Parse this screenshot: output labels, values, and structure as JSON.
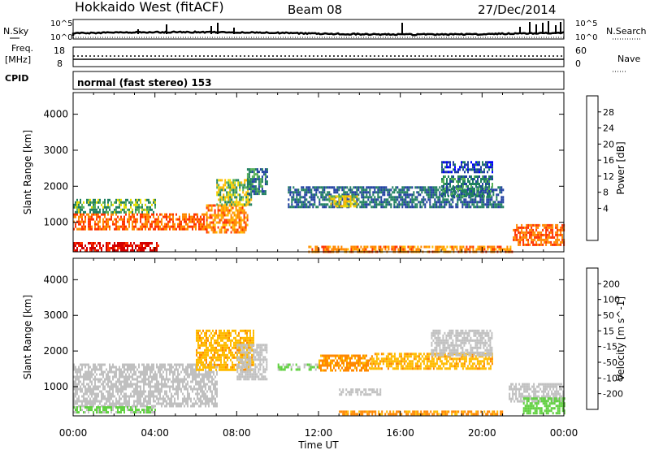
{
  "header": {
    "station": "Hokkaido West (fitACF)",
    "beam": "Beam 08",
    "date": "27/Dec/2014"
  },
  "noise_panel": {
    "left_label": "N.Sky",
    "right_label": "N.Search",
    "left_ticks": [
      "10^5",
      "10^0"
    ],
    "right_ticks": [
      "10^5",
      "10^0"
    ]
  },
  "freq_panel": {
    "left_label_line1": "Freq.",
    "left_label_line2": "[MHz]",
    "right_label": "Nave",
    "left_ticks": [
      "18",
      "8"
    ],
    "right_ticks": [
      "60",
      "0"
    ]
  },
  "cpid": {
    "label": "CPID",
    "value": "normal (fast stereo) 153"
  },
  "x_axis": {
    "label": "Time UT",
    "ticks": [
      "00:00",
      "04:00",
      "08:00",
      "12:00",
      "16:00",
      "20:00",
      "00:00"
    ]
  },
  "power_colorbar": {
    "title": "Power [dB]",
    "labels": [
      "28",
      "24",
      "20",
      "16",
      "12",
      "8",
      "4"
    ],
    "colors": [
      "#d40000",
      "#ff3300",
      "#ff8800",
      "#ffbb00",
      "#e8dd00",
      "#58b058",
      "#208060",
      "#2040a0",
      "#0000ff"
    ]
  },
  "velocity_colorbar": {
    "title": "Velocity [m s^-1]",
    "labels": [
      "200",
      "100",
      "50",
      "15",
      "-15",
      "-50",
      "-100",
      "-200"
    ],
    "colors": [
      "#2030b0",
      "#208060",
      "#58b058",
      "#60d040",
      "#c0c0c0",
      "#ffbb00",
      "#ff8800",
      "#ff3300",
      "#d40000"
    ]
  },
  "chart_data": [
    {
      "type": "heatmap",
      "name": "power",
      "ylabel": "Slant Range [km]",
      "xlabel": "",
      "ylim": [
        180,
        4600
      ],
      "yticks": [
        1000,
        2000,
        3000,
        4000
      ],
      "xlim_hours": [
        0,
        24
      ],
      "regions": [
        {
          "t": [
            0.0,
            6.5
          ],
          "r": [
            800,
            1250
          ],
          "value": 24
        },
        {
          "t": [
            0.0,
            4.2
          ],
          "r": [
            200,
            450
          ],
          "value": 30
        },
        {
          "t": [
            0.0,
            4.0
          ],
          "r": [
            1250,
            1650
          ],
          "value": 12
        },
        {
          "t": [
            6.5,
            8.5
          ],
          "r": [
            700,
            1500
          ],
          "value": 22
        },
        {
          "t": [
            7.0,
            8.7
          ],
          "r": [
            1500,
            2200
          ],
          "value": 14
        },
        {
          "t": [
            8.5,
            9.5
          ],
          "r": [
            1800,
            2500
          ],
          "value": 10
        },
        {
          "t": [
            10.5,
            21.0
          ],
          "r": [
            1450,
            2000
          ],
          "value": 8
        },
        {
          "t": [
            12.5,
            14.0
          ],
          "r": [
            1450,
            1750
          ],
          "value": 16
        },
        {
          "t": [
            18.0,
            20.5
          ],
          "r": [
            1700,
            2300
          ],
          "value": 10
        },
        {
          "t": [
            18.0,
            20.5
          ],
          "r": [
            2400,
            2700
          ],
          "value": 6
        },
        {
          "t": [
            11.5,
            21.5
          ],
          "r": [
            200,
            350
          ],
          "value": 22
        },
        {
          "t": [
            21.5,
            24.0
          ],
          "r": [
            400,
            950
          ],
          "value": 24
        }
      ]
    },
    {
      "type": "heatmap",
      "name": "velocity",
      "ylabel": "Slant Range [km]",
      "xlabel": "Time UT",
      "ylim": [
        180,
        4600
      ],
      "yticks": [
        1000,
        2000,
        3000,
        4000
      ],
      "xlim_hours": [
        0,
        24
      ],
      "regions": [
        {
          "t": [
            0.0,
            7.0
          ],
          "r": [
            450,
            1650
          ],
          "value": 0
        },
        {
          "t": [
            0.0,
            4.0
          ],
          "r": [
            250,
            450
          ],
          "value": 20
        },
        {
          "t": [
            6.0,
            8.8
          ],
          "r": [
            1500,
            2600
          ],
          "value": -40
        },
        {
          "t": [
            8.0,
            9.5
          ],
          "r": [
            1200,
            2200
          ],
          "value": 0
        },
        {
          "t": [
            10.0,
            12.0
          ],
          "r": [
            1500,
            1650
          ],
          "value": 20
        },
        {
          "t": [
            12.0,
            14.5
          ],
          "r": [
            1450,
            1900
          ],
          "value": -60
        },
        {
          "t": [
            14.5,
            20.5
          ],
          "r": [
            1500,
            1950
          ],
          "value": -40
        },
        {
          "t": [
            13.0,
            15.0
          ],
          "r": [
            800,
            950
          ],
          "value": 0
        },
        {
          "t": [
            17.5,
            20.5
          ],
          "r": [
            1900,
            2600
          ],
          "value": 0
        },
        {
          "t": [
            13.0,
            21.0
          ],
          "r": [
            200,
            330
          ],
          "value": -60
        },
        {
          "t": [
            21.3,
            24.0
          ],
          "r": [
            600,
            1100
          ],
          "value": 0
        },
        {
          "t": [
            22.0,
            24.0
          ],
          "r": [
            250,
            700
          ],
          "value": 30
        }
      ]
    }
  ]
}
